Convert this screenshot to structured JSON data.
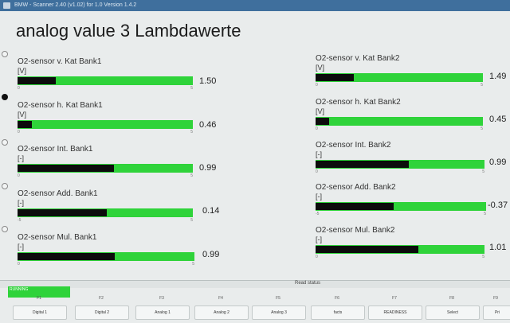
{
  "window": {
    "title": "BMW - Scanner 2.40 (v1.02) for 1.0 Version 1.4.2"
  },
  "page": {
    "title": "analog value 3 Lambdawerte"
  },
  "gauges": [
    {
      "label": "O2-sensor v. Kat Bank1",
      "unit": "[V]",
      "min": "0",
      "max": "5",
      "value": "1.50",
      "fill": 0.22
    },
    {
      "label": "O2-sensor h. Kat Bank1",
      "unit": "[V]",
      "min": "0",
      "max": "5",
      "value": "0.46",
      "fill": 0.08
    },
    {
      "label": "O2-sensor Int. Bank1",
      "unit": "[-]",
      "min": "0",
      "max": "5",
      "value": "0.99",
      "fill": 0.55
    },
    {
      "label": "O2-sensor Add. Bank1",
      "unit": "[-]",
      "min": "-5",
      "max": "5",
      "value": "0.14",
      "fill": 0.51
    },
    {
      "label": "O2-sensor Mul. Bank1",
      "unit": "[-]",
      "min": "0",
      "max": "5",
      "value": "0.99",
      "fill": 0.55
    },
    {
      "label": "O2-sensor v. Kat Bank2",
      "unit": "[V]",
      "min": "0",
      "max": "5",
      "value": "1.49",
      "fill": 0.23
    },
    {
      "label": "O2-sensor h. Kat Bank2",
      "unit": "[V]",
      "min": "0",
      "max": "5",
      "value": "0.45",
      "fill": 0.08
    },
    {
      "label": "O2-sensor Int. Bank2",
      "unit": "[-]",
      "min": "0",
      "max": "5",
      "value": "0.99",
      "fill": 0.55
    },
    {
      "label": "O2-sensor Add. Bank2",
      "unit": "[-]",
      "min": "-5",
      "max": "5",
      "value": "-0.37",
      "fill": 0.46
    },
    {
      "label": "O2-sensor Mul. Bank2",
      "unit": "[-]",
      "min": "0",
      "max": "5",
      "value": "1.01",
      "fill": 0.61
    }
  ],
  "status": {
    "text": "Read status",
    "running": "RUNNING"
  },
  "fkeys": [
    {
      "fn": "F1",
      "label": "Digital 1"
    },
    {
      "fn": "F2",
      "label": "Digital 2"
    },
    {
      "fn": "F3",
      "label": "Analog 1"
    },
    {
      "fn": "F4",
      "label": "Analog 2"
    },
    {
      "fn": "F5",
      "label": "Analog 3"
    },
    {
      "fn": "F6",
      "label": "facts"
    },
    {
      "fn": "F7",
      "label": "READINESS"
    },
    {
      "fn": "F8",
      "label": "Select"
    },
    {
      "fn": "F9",
      "label": "Pri"
    }
  ],
  "colors": {
    "bar": "#2fd33a",
    "fill": "#0c0c0c",
    "titlebar": "#3f6f9d"
  }
}
